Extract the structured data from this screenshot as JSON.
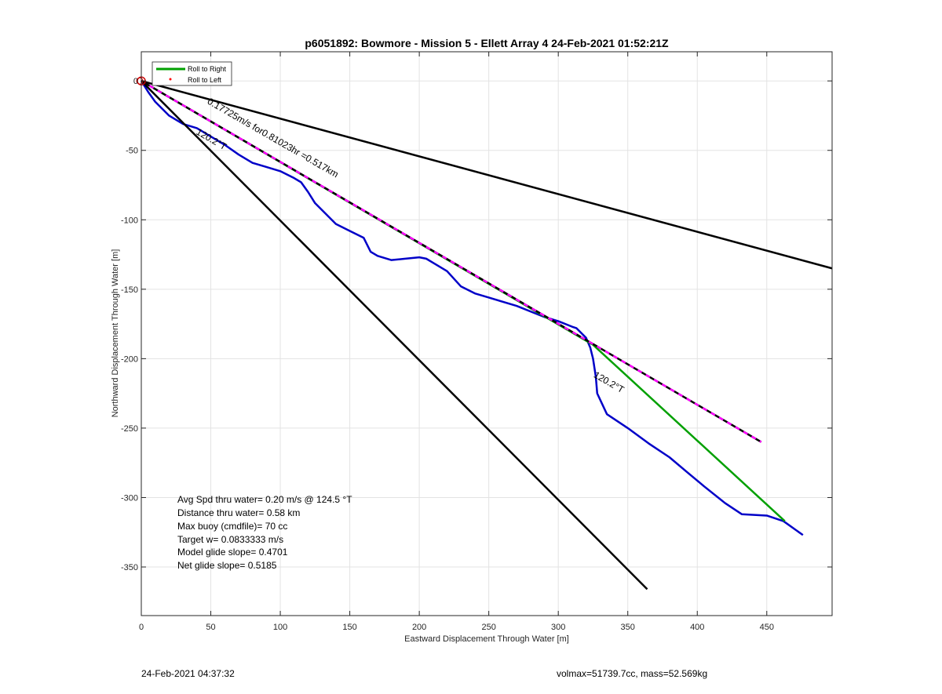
{
  "chart_data": {
    "type": "line",
    "title": "p6051892: Bowmore - Mission 5 - Ellett Array 4 24-Feb-2021 01:52:21Z",
    "xlabel": "Eastward Displacement Through Water [m]",
    "ylabel": "Northward Displacement Through Water [m]",
    "xlim": [
      0,
      497
    ],
    "ylim": [
      -385,
      21
    ],
    "xticks": [
      0,
      50,
      100,
      150,
      200,
      250,
      300,
      350,
      400,
      450
    ],
    "yticks": [
      0,
      -50,
      -100,
      -150,
      -200,
      -250,
      -300,
      -350
    ],
    "xtick_labels": [
      "0",
      "50",
      "100",
      "150",
      "200",
      "250",
      "300",
      "350",
      "400",
      "450"
    ],
    "ytick_labels": [
      "0",
      "-50",
      "-100",
      "-150",
      "-200",
      "-250",
      "-300",
      "-350"
    ],
    "grid": true,
    "legend_position": "top-left",
    "legend": [
      {
        "label": "Roll to Right",
        "color": "#00a000",
        "marker": "line"
      },
      {
        "label": "Roll to Left",
        "color": "#ff0000",
        "marker": "dot"
      }
    ],
    "series": [
      {
        "color": "#0000c8",
        "x": [
          0,
          5,
          10,
          20,
          30,
          40,
          50,
          60,
          70,
          80,
          90,
          100,
          110,
          115,
          120,
          125,
          130,
          140,
          150,
          160,
          165,
          170,
          180,
          190,
          200,
          205,
          210,
          220,
          230,
          240,
          250,
          270,
          290,
          300,
          310,
          313,
          320,
          323,
          325,
          327,
          328,
          335,
          350,
          365,
          380,
          393,
          405,
          420,
          432,
          450,
          462,
          476
        ],
        "y": [
          0,
          -8,
          -15,
          -25,
          -31,
          -34,
          -40,
          -46,
          -53,
          -59,
          -62,
          -65,
          -70,
          -73,
          -80,
          -88,
          -93,
          -103,
          -108,
          -113,
          -123,
          -126,
          -129,
          -128,
          -127,
          -128,
          -131,
          -137,
          -148,
          -153,
          -156,
          -162,
          -170,
          -173,
          -177,
          -178,
          -185,
          -192,
          -200,
          -213,
          -225,
          -240,
          -250,
          -261,
          -271,
          -282,
          -292,
          -304,
          -312,
          -313,
          -317,
          -327
        ]
      },
      {
        "color": "#00a000",
        "x": [
          0,
          325,
          463
        ],
        "y": [
          0,
          -190,
          -317
        ]
      },
      {
        "color": "#000000",
        "style": "dashed-magenta",
        "x": [
          0,
          446
        ],
        "y": [
          0,
          -260
        ]
      },
      {
        "color": "#000000",
        "x": [
          0,
          497
        ],
        "y": [
          0,
          -135
        ]
      },
      {
        "color": "#000000",
        "x": [
          0,
          364
        ],
        "y": [
          0,
          -366
        ]
      }
    ],
    "annotations": [
      {
        "text": "0.17725m/s for0.81023hr =0.517km",
        "x": 47,
        "y": -16,
        "rotate": 30
      },
      {
        "text": "120.2°T",
        "x": 39,
        "y": -38,
        "rotate": 30
      },
      {
        "text": "120.2°T",
        "x": 325,
        "y": -213,
        "rotate": 30
      }
    ],
    "start_marker": {
      "x": 0,
      "y": 0,
      "color": "#cc0000"
    },
    "stats": [
      "Avg Spd thru water=  0.20 m/s @ 124.5 °T",
      "Distance thru water=  0.58 km",
      "Max buoy (cmdfile)= 70 cc",
      "Target w= 0.0833333 m/s",
      "Model glide slope= 0.4701",
      "Net glide slope= 0.5185"
    ]
  },
  "footer": {
    "timestamp": "24-Feb-2021 04:37:32",
    "buoyancy": "volmax=51739.7cc, mass=52.569kg"
  }
}
